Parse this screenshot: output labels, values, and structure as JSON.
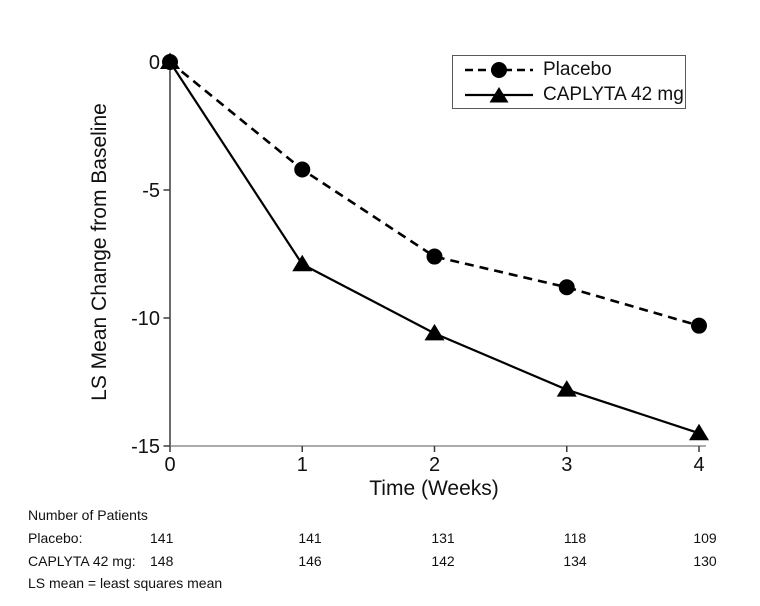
{
  "chart_data": {
    "type": "line",
    "title": "",
    "xlabel": "Time (Weeks)",
    "ylabel": "LS Mean Change from Baseline",
    "x": [
      0,
      1,
      2,
      3,
      4
    ],
    "x_ticks": [
      "0",
      "1",
      "2",
      "3",
      "4"
    ],
    "y_tick_values": [
      0,
      -5,
      -10,
      -15
    ],
    "y_ticks": [
      "0",
      "-5",
      "-10",
      "-15"
    ],
    "xlim": [
      0,
      4
    ],
    "ylim": [
      -15,
      0
    ],
    "grid": false,
    "legend_position": "top-right",
    "series": [
      {
        "name": "Placebo",
        "marker": "circle",
        "line_style": "dashed",
        "values": [
          0,
          -4.2,
          -7.6,
          -8.8,
          -10.3
        ]
      },
      {
        "name": "CAPLYTA 42 mg",
        "marker": "triangle",
        "line_style": "solid",
        "values": [
          0,
          -7.9,
          -10.6,
          -12.8,
          -14.5
        ]
      }
    ]
  },
  "patients": {
    "header": "Number of Patients",
    "rows": [
      {
        "label": "Placebo:",
        "values": [
          "141",
          "141",
          "131",
          "118",
          "109"
        ]
      },
      {
        "label": "CAPLYTA 42 mg:",
        "values": [
          "148",
          "146",
          "142",
          "134",
          "130"
        ]
      }
    ]
  },
  "footnote": "LS mean = least squares mean",
  "colors": {
    "ink": "#000000",
    "text": "#111111",
    "axis_y": "#3a3a3a",
    "axis_x": "#8f8f8f",
    "legend_border": "#595959",
    "background": "#ffffff"
  }
}
